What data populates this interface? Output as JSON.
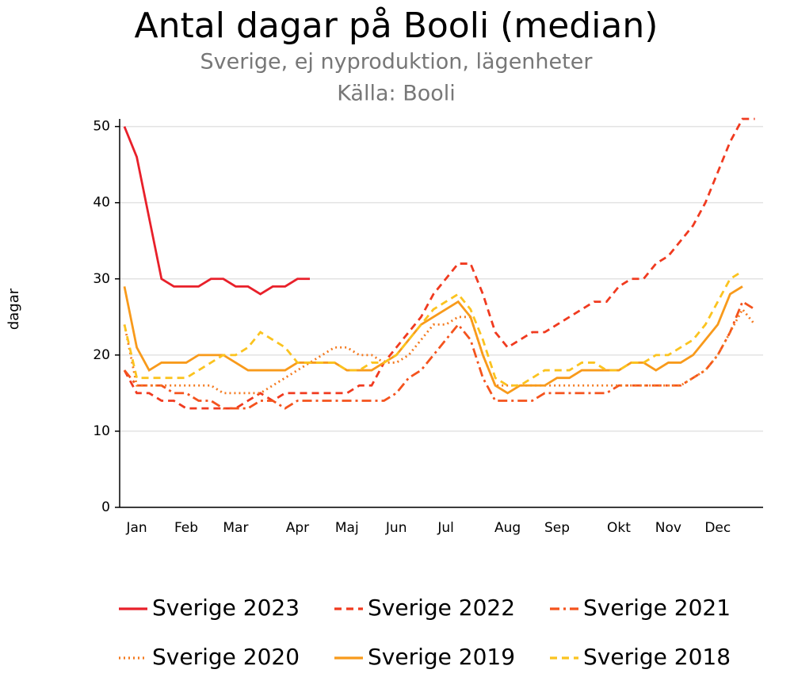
{
  "chart_data": {
    "type": "line",
    "title": "Antal dagar på Booli (median)",
    "subtitle": [
      "Sverige, ej nyproduktion, lägenheter",
      "Källa: Booli"
    ],
    "y_label": "dagar",
    "categories": [
      null,
      "Jan",
      null,
      null,
      null,
      "Feb",
      null,
      null,
      null,
      "Mar",
      null,
      null,
      null,
      null,
      "Apr",
      null,
      null,
      null,
      "Maj",
      null,
      null,
      null,
      "Jun",
      null,
      null,
      null,
      "Jul",
      null,
      null,
      null,
      null,
      "Aug",
      null,
      null,
      null,
      "Sep",
      null,
      null,
      null,
      null,
      "Okt",
      null,
      null,
      null,
      "Nov",
      null,
      null,
      null,
      "Dec",
      null,
      null,
      null
    ],
    "ylim": [
      0,
      51
    ],
    "yticks": [
      0,
      10,
      20,
      30,
      40,
      50
    ],
    "grid": true,
    "series": [
      {
        "name": "Sverige 2023",
        "color": "#e8202a",
        "dash": "solid",
        "values": [
          50,
          46,
          38,
          30,
          29,
          29,
          29,
          30,
          30,
          29,
          29,
          28,
          29,
          29,
          30,
          30,
          null,
          null,
          null,
          null,
          null,
          null,
          null,
          null,
          null,
          null,
          null,
          null,
          null,
          null,
          null,
          null,
          null,
          null,
          null,
          null,
          null,
          null,
          null,
          null,
          null,
          null,
          null,
          null,
          null,
          null,
          null,
          null,
          null,
          null,
          null,
          null
        ]
      },
      {
        "name": "Sverige 2022",
        "color": "#f03a1f",
        "dash": "dashed",
        "values": [
          18,
          15,
          15,
          14,
          14,
          13,
          13,
          13,
          13,
          13,
          14,
          15,
          14,
          15,
          15,
          15,
          15,
          15,
          15,
          16,
          16,
          19,
          21,
          23,
          25,
          28,
          30,
          32,
          32,
          28,
          23,
          21,
          22,
          23,
          23,
          24,
          25,
          26,
          27,
          27,
          29,
          30,
          30,
          32,
          33,
          35,
          37,
          40,
          44,
          48,
          51,
          51
        ]
      },
      {
        "name": "Sverige 2021",
        "color": "#f4531d",
        "dash": "dashdot",
        "values": [
          18,
          16,
          16,
          16,
          15,
          15,
          14,
          14,
          13,
          13,
          13,
          14,
          14,
          13,
          14,
          14,
          14,
          14,
          14,
          14,
          14,
          14,
          15,
          17,
          18,
          20,
          22,
          24,
          22,
          17,
          14,
          14,
          14,
          14,
          15,
          15,
          15,
          15,
          15,
          15,
          16,
          16,
          16,
          16,
          16,
          16,
          17,
          18,
          20,
          23,
          27,
          26
        ]
      },
      {
        "name": "Sverige 2020",
        "color": "#f47a1f",
        "dash": "dotted",
        "values": [
          24,
          16,
          16,
          16,
          16,
          16,
          16,
          16,
          15,
          15,
          15,
          15,
          16,
          17,
          18,
          19,
          20,
          21,
          21,
          20,
          20,
          19,
          19,
          20,
          22,
          24,
          24,
          25,
          25,
          20,
          16,
          16,
          16,
          16,
          16,
          16,
          16,
          16,
          16,
          16,
          16,
          16,
          16,
          16,
          16,
          16,
          17,
          18,
          20,
          23,
          26,
          24
        ]
      },
      {
        "name": "Sverige 2019",
        "color": "#f89a1b",
        "dash": "solid",
        "values": [
          29,
          21,
          18,
          19,
          19,
          19,
          20,
          20,
          20,
          19,
          18,
          18,
          18,
          18,
          19,
          19,
          19,
          19,
          18,
          18,
          18,
          19,
          20,
          22,
          24,
          25,
          26,
          27,
          25,
          20,
          16,
          15,
          16,
          16,
          16,
          17,
          17,
          18,
          18,
          18,
          18,
          19,
          19,
          18,
          19,
          19,
          20,
          22,
          24,
          28,
          29,
          null
        ]
      },
      {
        "name": "Sverige 2018",
        "color": "#fbc31f",
        "dash": "dashed",
        "values": [
          24,
          17,
          17,
          17,
          17,
          17,
          18,
          19,
          20,
          20,
          21,
          23,
          22,
          21,
          19,
          19,
          19,
          19,
          18,
          18,
          19,
          19,
          20,
          22,
          24,
          26,
          27,
          28,
          26,
          22,
          17,
          16,
          16,
          17,
          18,
          18,
          18,
          19,
          19,
          18,
          18,
          19,
          19,
          20,
          20,
          21,
          22,
          24,
          27,
          30,
          31,
          null
        ]
      }
    ]
  }
}
